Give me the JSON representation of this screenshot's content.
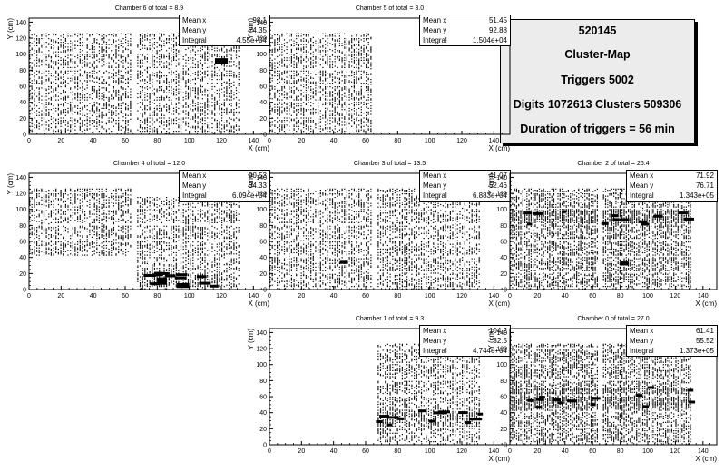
{
  "info_box": {
    "run": "520145",
    "title": "Cluster-Map",
    "triggers": "Triggers 5002",
    "digits": "Digits 1072613 Clusters 509306",
    "duration": "Duration of triggers = 56 min"
  },
  "chart_data": [
    {
      "type": "heatmap",
      "title": "Chamber 6  of total = 8.9",
      "xlabel": "X (cm)",
      "ylabel": "Y (cm)",
      "xlim": [
        0,
        150
      ],
      "ylim": [
        0,
        145
      ],
      "x_ticks": [
        0,
        20,
        40,
        60,
        80,
        100,
        120,
        140
      ],
      "y_ticks": [
        0,
        20,
        40,
        60,
        80,
        100,
        120,
        140
      ],
      "stats": {
        "mean_x_label": "Mean x",
        "mean_x": "98.1",
        "mean_y_label": "Mean y",
        "mean_y": "74.35",
        "integral_label": "Integral",
        "integral": "4.55e+04"
      },
      "pattern": {
        "regions": [
          [
            0,
            131,
            0,
            125
          ]
        ],
        "density": 0.42,
        "seed": 6,
        "hotspots": [
          [
            116,
            124,
            88,
            95
          ]
        ],
        "clusters": []
      }
    },
    {
      "type": "heatmap",
      "title": "Chamber 5  of total = 3.0",
      "xlabel": "X (cm)",
      "ylabel": "Y (cm)",
      "xlim": [
        0,
        150
      ],
      "ylim": [
        0,
        145
      ],
      "x_ticks": [
        0,
        20,
        40,
        60,
        80,
        100,
        120,
        140
      ],
      "y_ticks": [
        0,
        20,
        40,
        60,
        80,
        100,
        120,
        140
      ],
      "stats": {
        "mean_x_label": "Mean x",
        "mean_x": "51.45",
        "mean_y_label": "Mean y",
        "mean_y": "92.88",
        "integral_label": "Integral",
        "integral": "1.504e+04"
      },
      "pattern": {
        "regions": [
          [
            0,
            64,
            0,
            125
          ]
        ],
        "density": 0.45,
        "seed": 5,
        "hotspots": [],
        "clusters": []
      }
    },
    {
      "type": "heatmap",
      "title": "Chamber 4  of total = 12.0",
      "xlabel": "X (cm)",
      "ylabel": "Y (cm)",
      "xlim": [
        0,
        150
      ],
      "ylim": [
        0,
        145
      ],
      "x_ticks": [
        0,
        20,
        40,
        60,
        80,
        100,
        120,
        140
      ],
      "y_ticks": [
        0,
        20,
        40,
        60,
        80,
        100,
        120,
        140
      ],
      "stats": {
        "mean_x_label": "Mean x",
        "mean_x": "90.53",
        "mean_y_label": "Mean y",
        "mean_y": "34.33",
        "integral_label": "Integral",
        "integral": "6.094e+04"
      },
      "pattern": {
        "regions": [
          [
            0,
            64,
            42,
            125
          ],
          [
            64,
            131,
            0,
            115
          ]
        ],
        "density": 0.45,
        "seed": 4,
        "hotspots": [
          [
            80,
            86,
            6,
            15
          ],
          [
            92,
            100,
            2,
            8
          ]
        ],
        "clusters": [
          [
            70,
            120,
            2,
            22
          ]
        ]
      }
    },
    {
      "type": "heatmap",
      "title": "Chamber 3  of total = 13.5",
      "xlabel": "X (cm)",
      "ylabel": "Y (cm)",
      "xlim": [
        0,
        150
      ],
      "ylim": [
        0,
        145
      ],
      "x_ticks": [
        0,
        20,
        40,
        60,
        80,
        100,
        120,
        140
      ],
      "y_ticks": [
        0,
        20,
        40,
        60,
        80,
        100,
        120,
        140
      ],
      "stats": {
        "mean_x_label": "Mean x",
        "mean_x": "41.07",
        "mean_y_label": "Mean y",
        "mean_y": "52.46",
        "integral_label": "Integral",
        "integral": "6.883e+04"
      },
      "pattern": {
        "regions": [
          [
            0,
            131,
            0,
            125
          ]
        ],
        "density": 0.45,
        "seed": 3,
        "hotspots": [
          [
            44,
            49,
            32,
            37
          ]
        ],
        "clusters": []
      }
    },
    {
      "type": "heatmap",
      "title": "Chamber 2  of total = 26.4",
      "xlabel": "X (cm)",
      "ylabel": "Y (cm)",
      "xlim": [
        0,
        150
      ],
      "ylim": [
        0,
        145
      ],
      "x_ticks": [
        0,
        20,
        40,
        60,
        80,
        100,
        120,
        140
      ],
      "y_ticks": [
        0,
        20,
        40,
        60,
        80,
        100,
        120,
        140
      ],
      "stats": {
        "mean_x_label": "Mean x",
        "mean_x": "71.92",
        "mean_y_label": "Mean y",
        "mean_y": "76.71",
        "integral_label": "Integral",
        "integral": "1.343e+05"
      },
      "pattern": {
        "regions": [
          [
            0,
            131,
            0,
            125
          ]
        ],
        "density": 0.5,
        "seed": 2,
        "hotspots": [
          [
            80,
            86,
            30,
            35
          ]
        ],
        "clusters": [
          [
            0,
            131,
            78,
            98
          ]
        ]
      }
    },
    {
      "type": "heatmap",
      "title": "Chamber 1  of total = 9.3",
      "xlabel": "X (cm)",
      "ylabel": "Y (cm)",
      "xlim": [
        0,
        150
      ],
      "ylim": [
        0,
        145
      ],
      "x_ticks": [
        0,
        20,
        40,
        60,
        80,
        100,
        120,
        140
      ],
      "y_ticks": [
        0,
        20,
        40,
        60,
        80,
        100,
        120,
        140
      ],
      "stats": {
        "mean_x_label": "Mean x",
        "mean_x": "104.2",
        "mean_y_label": "Mean y",
        "mean_y": "32.5",
        "integral_label": "Integral",
        "integral": "4.744e+04"
      },
      "pattern": {
        "regions": [
          [
            66,
            131,
            0,
            125
          ]
        ],
        "density": 0.45,
        "seed": 1,
        "hotspots": [],
        "clusters": [
          [
            66,
            131,
            22,
            42
          ]
        ]
      }
    },
    {
      "type": "heatmap",
      "title": "Chamber 0  of total = 27.0",
      "xlabel": "X (cm)",
      "ylabel": "Y (cm)",
      "xlim": [
        0,
        150
      ],
      "ylim": [
        0,
        145
      ],
      "x_ticks": [
        0,
        20,
        40,
        60,
        80,
        100,
        120,
        140
      ],
      "y_ticks": [
        0,
        20,
        40,
        60,
        80,
        100,
        120,
        140
      ],
      "stats": {
        "mean_x_label": "Mean x",
        "mean_x": "61.41",
        "mean_y_label": "Mean y",
        "mean_y": "55.52",
        "integral_label": "Integral",
        "integral": "1.373e+05"
      },
      "pattern": {
        "regions": [
          [
            0,
            131,
            0,
            125
          ]
        ],
        "density": 0.5,
        "seed": 0,
        "hotspots": [],
        "clusters": [
          [
            0,
            131,
            45,
            70
          ]
        ]
      }
    }
  ]
}
